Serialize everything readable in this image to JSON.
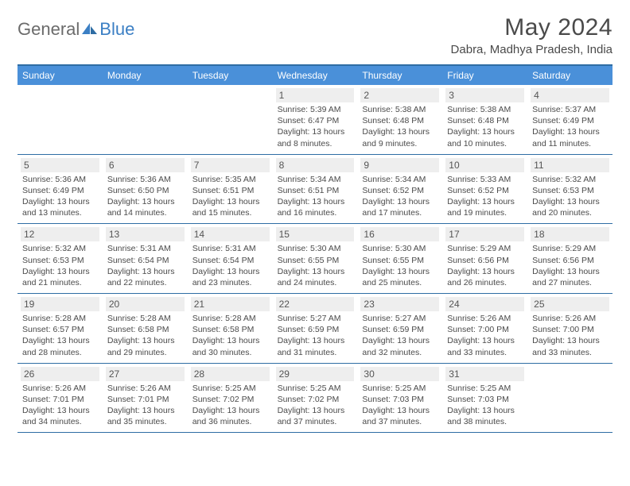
{
  "logo": {
    "general": "General",
    "blue": "Blue"
  },
  "title": "May 2024",
  "location": "Dabra, Madhya Pradesh, India",
  "brand_blue": "#4a90d9",
  "border_blue": "#2e6da4",
  "day_num_bg": "#eeeeee",
  "text_color": "#4a4a4a",
  "days": [
    "Sunday",
    "Monday",
    "Tuesday",
    "Wednesday",
    "Thursday",
    "Friday",
    "Saturday"
  ],
  "weeks": [
    [
      null,
      null,
      null,
      {
        "n": "1",
        "sr": "5:39 AM",
        "ss": "6:47 PM",
        "dl": "13 hours and 8 minutes."
      },
      {
        "n": "2",
        "sr": "5:38 AM",
        "ss": "6:48 PM",
        "dl": "13 hours and 9 minutes."
      },
      {
        "n": "3",
        "sr": "5:38 AM",
        "ss": "6:48 PM",
        "dl": "13 hours and 10 minutes."
      },
      {
        "n": "4",
        "sr": "5:37 AM",
        "ss": "6:49 PM",
        "dl": "13 hours and 11 minutes."
      }
    ],
    [
      {
        "n": "5",
        "sr": "5:36 AM",
        "ss": "6:49 PM",
        "dl": "13 hours and 13 minutes."
      },
      {
        "n": "6",
        "sr": "5:36 AM",
        "ss": "6:50 PM",
        "dl": "13 hours and 14 minutes."
      },
      {
        "n": "7",
        "sr": "5:35 AM",
        "ss": "6:51 PM",
        "dl": "13 hours and 15 minutes."
      },
      {
        "n": "8",
        "sr": "5:34 AM",
        "ss": "6:51 PM",
        "dl": "13 hours and 16 minutes."
      },
      {
        "n": "9",
        "sr": "5:34 AM",
        "ss": "6:52 PM",
        "dl": "13 hours and 17 minutes."
      },
      {
        "n": "10",
        "sr": "5:33 AM",
        "ss": "6:52 PM",
        "dl": "13 hours and 19 minutes."
      },
      {
        "n": "11",
        "sr": "5:32 AM",
        "ss": "6:53 PM",
        "dl": "13 hours and 20 minutes."
      }
    ],
    [
      {
        "n": "12",
        "sr": "5:32 AM",
        "ss": "6:53 PM",
        "dl": "13 hours and 21 minutes."
      },
      {
        "n": "13",
        "sr": "5:31 AM",
        "ss": "6:54 PM",
        "dl": "13 hours and 22 minutes."
      },
      {
        "n": "14",
        "sr": "5:31 AM",
        "ss": "6:54 PM",
        "dl": "13 hours and 23 minutes."
      },
      {
        "n": "15",
        "sr": "5:30 AM",
        "ss": "6:55 PM",
        "dl": "13 hours and 24 minutes."
      },
      {
        "n": "16",
        "sr": "5:30 AM",
        "ss": "6:55 PM",
        "dl": "13 hours and 25 minutes."
      },
      {
        "n": "17",
        "sr": "5:29 AM",
        "ss": "6:56 PM",
        "dl": "13 hours and 26 minutes."
      },
      {
        "n": "18",
        "sr": "5:29 AM",
        "ss": "6:56 PM",
        "dl": "13 hours and 27 minutes."
      }
    ],
    [
      {
        "n": "19",
        "sr": "5:28 AM",
        "ss": "6:57 PM",
        "dl": "13 hours and 28 minutes."
      },
      {
        "n": "20",
        "sr": "5:28 AM",
        "ss": "6:58 PM",
        "dl": "13 hours and 29 minutes."
      },
      {
        "n": "21",
        "sr": "5:28 AM",
        "ss": "6:58 PM",
        "dl": "13 hours and 30 minutes."
      },
      {
        "n": "22",
        "sr": "5:27 AM",
        "ss": "6:59 PM",
        "dl": "13 hours and 31 minutes."
      },
      {
        "n": "23",
        "sr": "5:27 AM",
        "ss": "6:59 PM",
        "dl": "13 hours and 32 minutes."
      },
      {
        "n": "24",
        "sr": "5:26 AM",
        "ss": "7:00 PM",
        "dl": "13 hours and 33 minutes."
      },
      {
        "n": "25",
        "sr": "5:26 AM",
        "ss": "7:00 PM",
        "dl": "13 hours and 33 minutes."
      }
    ],
    [
      {
        "n": "26",
        "sr": "5:26 AM",
        "ss": "7:01 PM",
        "dl": "13 hours and 34 minutes."
      },
      {
        "n": "27",
        "sr": "5:26 AM",
        "ss": "7:01 PM",
        "dl": "13 hours and 35 minutes."
      },
      {
        "n": "28",
        "sr": "5:25 AM",
        "ss": "7:02 PM",
        "dl": "13 hours and 36 minutes."
      },
      {
        "n": "29",
        "sr": "5:25 AM",
        "ss": "7:02 PM",
        "dl": "13 hours and 37 minutes."
      },
      {
        "n": "30",
        "sr": "5:25 AM",
        "ss": "7:03 PM",
        "dl": "13 hours and 37 minutes."
      },
      {
        "n": "31",
        "sr": "5:25 AM",
        "ss": "7:03 PM",
        "dl": "13 hours and 38 minutes."
      },
      null
    ]
  ],
  "labels": {
    "sunrise": "Sunrise: ",
    "sunset": "Sunset: ",
    "daylight": "Daylight: "
  }
}
